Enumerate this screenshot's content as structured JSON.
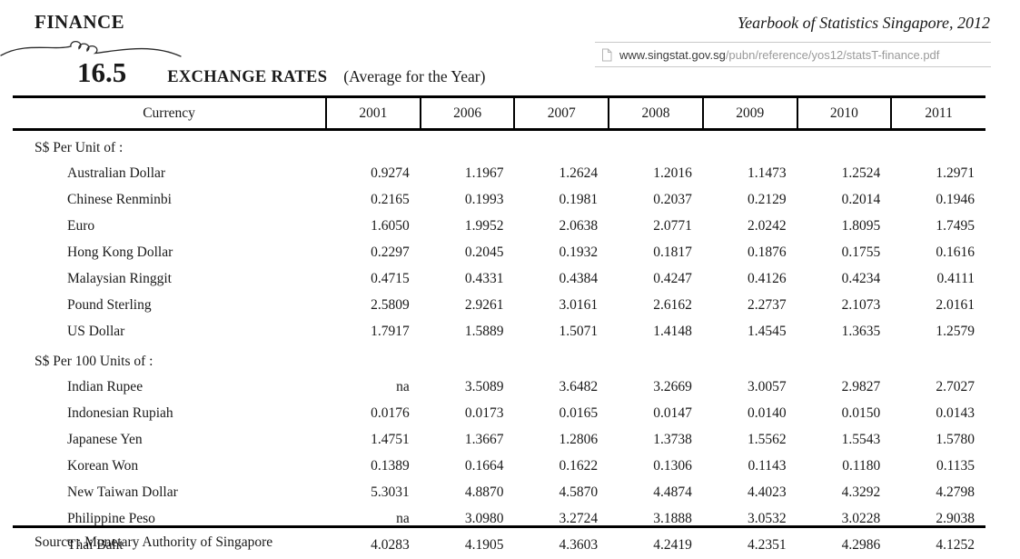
{
  "header": {
    "section_label": "FINANCE",
    "yearbook_title": "Yearbook of Statistics Singapore, 2012",
    "url": {
      "domain": "www.singstat.gov.sg",
      "path": "/pubn/reference/yos12/statsT-finance.pdf"
    }
  },
  "title": {
    "table_number": "16.5",
    "table_name": "EXCHANGE RATES",
    "table_qualifier": "(Average for the Year)"
  },
  "table": {
    "columns": [
      "Currency",
      "2001",
      "2006",
      "2007",
      "2008",
      "2009",
      "2010",
      "2011"
    ],
    "groups": [
      {
        "label": "S$ Per Unit of :",
        "rows": [
          {
            "currency": "Australian Dollar",
            "values": [
              "0.9274",
              "1.1967",
              "1.2624",
              "1.2016",
              "1.1473",
              "1.2524",
              "1.2971"
            ]
          },
          {
            "currency": "Chinese Renminbi",
            "values": [
              "0.2165",
              "0.1993",
              "0.1981",
              "0.2037",
              "0.2129",
              "0.2014",
              "0.1946"
            ]
          },
          {
            "currency": "Euro",
            "values": [
              "1.6050",
              "1.9952",
              "2.0638",
              "2.0771",
              "2.0242",
              "1.8095",
              "1.7495"
            ]
          },
          {
            "currency": "Hong Kong Dollar",
            "values": [
              "0.2297",
              "0.2045",
              "0.1932",
              "0.1817",
              "0.1876",
              "0.1755",
              "0.1616"
            ]
          },
          {
            "currency": "Malaysian Ringgit",
            "values": [
              "0.4715",
              "0.4331",
              "0.4384",
              "0.4247",
              "0.4126",
              "0.4234",
              "0.4111"
            ]
          },
          {
            "currency": "Pound Sterling",
            "values": [
              "2.5809",
              "2.9261",
              "3.0161",
              "2.6162",
              "2.2737",
              "2.1073",
              "2.0161"
            ]
          },
          {
            "currency": "US Dollar",
            "values": [
              "1.7917",
              "1.5889",
              "1.5071",
              "1.4148",
              "1.4545",
              "1.3635",
              "1.2579"
            ]
          }
        ]
      },
      {
        "label": "S$ Per 100 Units of :",
        "rows": [
          {
            "currency": "Indian Rupee",
            "values": [
              "na",
              "3.5089",
              "3.6482",
              "3.2669",
              "3.0057",
              "2.9827",
              "2.7027"
            ]
          },
          {
            "currency": "Indonesian Rupiah",
            "values": [
              "0.0176",
              "0.0173",
              "0.0165",
              "0.0147",
              "0.0140",
              "0.0150",
              "0.0143"
            ]
          },
          {
            "currency": "Japanese Yen",
            "values": [
              "1.4751",
              "1.3667",
              "1.2806",
              "1.3738",
              "1.5562",
              "1.5543",
              "1.5780"
            ]
          },
          {
            "currency": "Korean Won",
            "values": [
              "0.1389",
              "0.1664",
              "0.1622",
              "0.1306",
              "0.1143",
              "0.1180",
              "0.1135"
            ]
          },
          {
            "currency": "New Taiwan Dollar",
            "values": [
              "5.3031",
              "4.8870",
              "4.5870",
              "4.4874",
              "4.4023",
              "4.3292",
              "4.2798"
            ]
          },
          {
            "currency": "Philippine Peso",
            "values": [
              "na",
              "3.0980",
              "3.2724",
              "3.1888",
              "3.0532",
              "3.0228",
              "2.9038"
            ]
          },
          {
            "currency": "Thai Baht",
            "values": [
              "4.0283",
              "4.1905",
              "4.3603",
              "4.2419",
              "4.2351",
              "4.2986",
              "4.1252"
            ]
          }
        ]
      }
    ]
  },
  "footer": {
    "source": "Source : Monetary Authority of Singapore"
  },
  "colors": {
    "text": "#1a1a1a",
    "rule": "#000000",
    "url_domain": "#3c3c3c",
    "url_path": "#9b9b9b",
    "url_border": "#c9c9c9"
  }
}
